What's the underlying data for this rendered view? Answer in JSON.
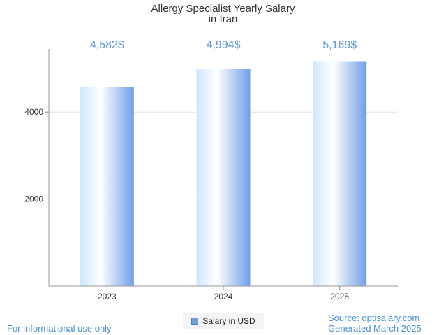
{
  "chart_data": {
    "type": "bar",
    "title": [
      "Allergy Specialist Yearly Salary",
      "in Iran"
    ],
    "categories": [
      "2023",
      "2024",
      "2025"
    ],
    "series": [
      {
        "name": "Salary in USD",
        "values": [
          4582,
          4994,
          5169
        ]
      }
    ],
    "value_labels": [
      "4,582$",
      "4,994$",
      "5,169$"
    ],
    "y_ticks": [
      2000,
      4000
    ],
    "y_tick_labels": [
      "2000",
      "4000"
    ],
    "ylim": [
      0,
      5450
    ],
    "xlabel": "",
    "ylabel": "",
    "grid": true,
    "legend_position": "bottom-center",
    "bar_color_dark": "#6f9fe8",
    "bar_color_light": "#ffffff",
    "value_label_color": "#5b97d8"
  },
  "legend": {
    "label": "Salary in USD"
  },
  "footer": {
    "left_note": "For informational use only",
    "source": "Source: optisalary.com",
    "generated": "Generated March 2025"
  }
}
